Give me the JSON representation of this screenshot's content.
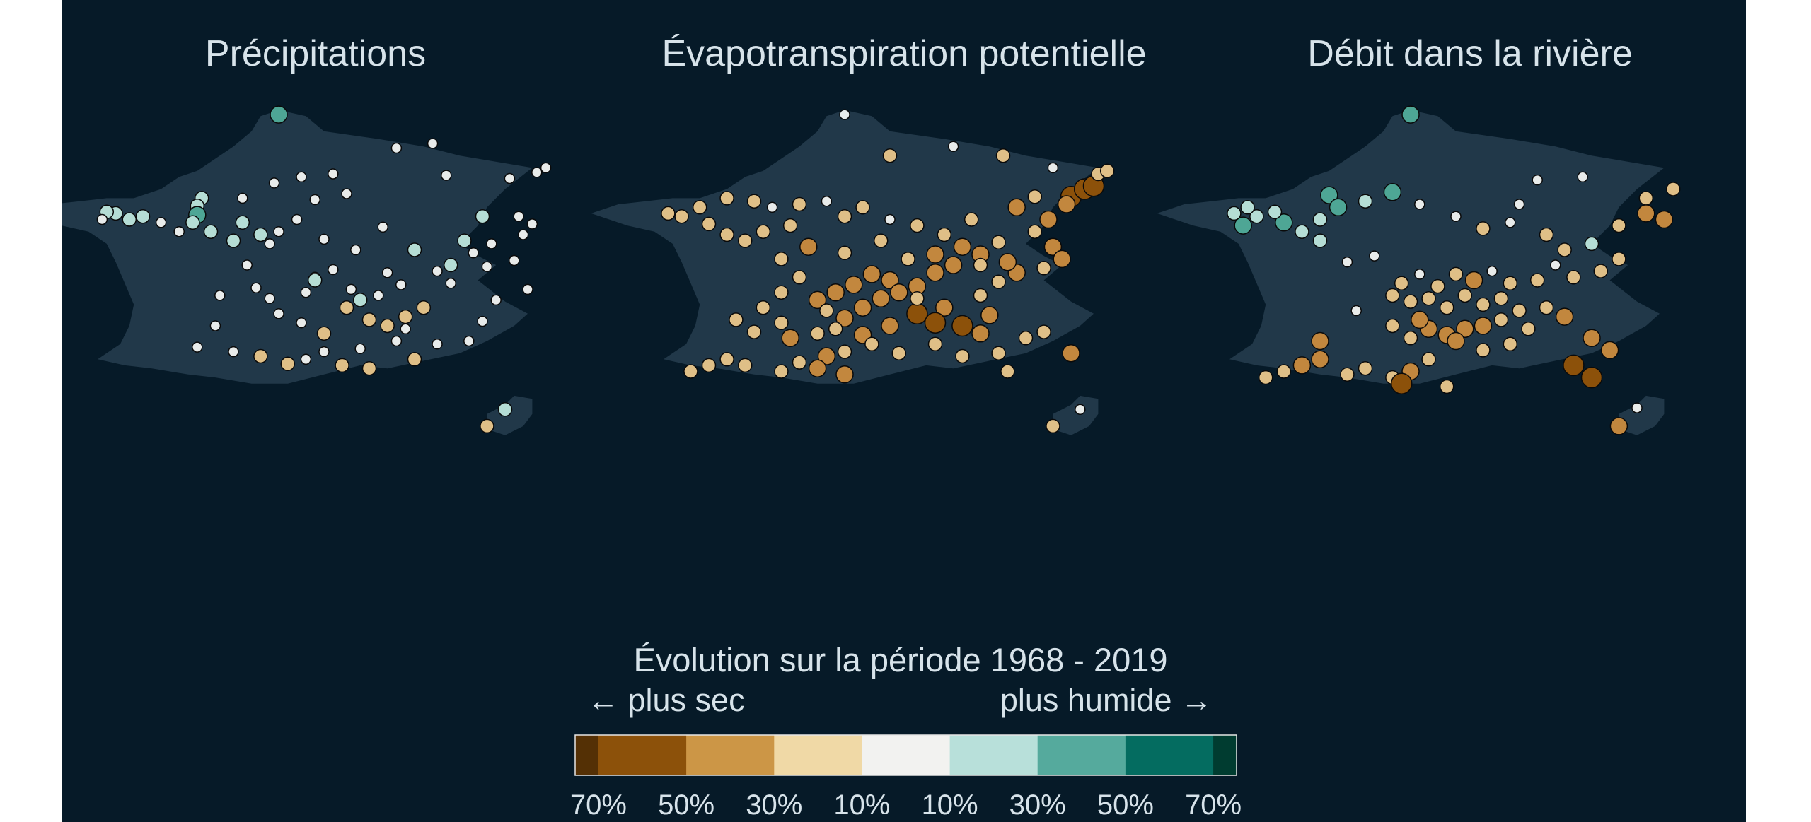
{
  "maps": [
    {
      "title": "Précipitations",
      "stations": [
        [
          0.4,
          0.01,
          2
        ],
        [
          0.23,
          0.56,
          1
        ],
        [
          0.22,
          0.61,
          1
        ],
        [
          0.22,
          0.67,
          2
        ],
        [
          0.21,
          0.72,
          1
        ],
        [
          0.25,
          0.78,
          1
        ],
        [
          0.74,
          0.2,
          0
        ],
        [
          0.66,
          0.23,
          0
        ],
        [
          0.77,
          0.41,
          0
        ],
        [
          0.91,
          0.43,
          0
        ],
        [
          0.97,
          0.39,
          0
        ],
        [
          0.99,
          0.36,
          0
        ],
        [
          0.32,
          0.56,
          0
        ],
        [
          0.39,
          0.46,
          0
        ],
        [
          0.45,
          0.42,
          0
        ],
        [
          0.52,
          0.4,
          0
        ],
        [
          0.55,
          0.53,
          0
        ],
        [
          0.48,
          0.57,
          0
        ],
        [
          0.44,
          0.7,
          0
        ],
        [
          0.4,
          0.78,
          0
        ],
        [
          0.38,
          0.86,
          0
        ],
        [
          0.5,
          0.83,
          0
        ],
        [
          0.57,
          0.9,
          0
        ],
        [
          0.63,
          0.75,
          0
        ],
        [
          0.7,
          0.9,
          1
        ],
        [
          0.78,
          1.0,
          1
        ],
        [
          0.86,
          1.01,
          0
        ],
        [
          0.92,
          0.97,
          0
        ],
        [
          0.95,
          1.16,
          0
        ],
        [
          0.88,
          1.23,
          0
        ],
        [
          0.78,
          1.12,
          0
        ],
        [
          0.75,
          1.04,
          0
        ],
        [
          0.67,
          1.13,
          0
        ],
        [
          0.64,
          1.05,
          0
        ],
        [
          0.62,
          1.2,
          0
        ],
        [
          0.56,
          1.16,
          0
        ],
        [
          0.55,
          1.28,
          -1
        ],
        [
          0.6,
          1.36,
          -1
        ],
        [
          0.68,
          1.34,
          -1
        ],
        [
          0.72,
          1.28,
          -1
        ],
        [
          0.64,
          1.4,
          -1
        ],
        [
          0.5,
          1.45,
          -1
        ],
        [
          0.45,
          1.38,
          0
        ],
        [
          0.4,
          1.32,
          0
        ],
        [
          0.38,
          1.22,
          0
        ],
        [
          0.46,
          1.18,
          0
        ],
        [
          0.48,
          1.08,
          0
        ],
        [
          0.52,
          1.03,
          0
        ],
        [
          0.33,
          1.0,
          0
        ],
        [
          0.27,
          1.2,
          0
        ],
        [
          0.26,
          1.4,
          0
        ],
        [
          0.22,
          1.54,
          0
        ],
        [
          0.3,
          1.57,
          0
        ],
        [
          0.36,
          1.6,
          -1
        ],
        [
          0.42,
          1.65,
          -1
        ],
        [
          0.46,
          1.62,
          0
        ],
        [
          0.5,
          1.57,
          0
        ],
        [
          0.58,
          1.55,
          0
        ],
        [
          0.66,
          1.5,
          0
        ],
        [
          0.75,
          1.52,
          0
        ],
        [
          0.82,
          1.5,
          0
        ],
        [
          0.85,
          1.37,
          0
        ],
        [
          0.7,
          1.62,
          -1
        ],
        [
          0.54,
          1.66,
          -1
        ],
        [
          0.6,
          1.68,
          -1
        ],
        [
          0.68,
          1.42,
          0
        ],
        [
          0.32,
          0.72,
          1
        ],
        [
          0.36,
          0.8,
          1
        ],
        [
          0.3,
          0.84,
          1
        ],
        [
          0.18,
          0.78,
          0
        ],
        [
          0.14,
          0.72,
          0
        ],
        [
          0.1,
          0.68,
          1
        ],
        [
          0.07,
          0.7,
          1
        ],
        [
          0.04,
          0.66,
          1
        ],
        [
          0.02,
          0.65,
          1
        ],
        [
          0.01,
          0.7,
          0
        ],
        [
          0.81,
          0.84,
          1
        ],
        [
          0.83,
          0.92,
          0
        ],
        [
          0.87,
          0.86,
          0
        ],
        [
          0.94,
          0.8,
          0
        ],
        [
          0.96,
          0.73,
          0
        ],
        [
          0.93,
          0.68,
          0
        ],
        [
          0.85,
          0.68,
          1
        ],
        [
          0.58,
          1.23,
          1
        ],
        [
          0.48,
          1.1,
          1
        ],
        [
          0.35,
          1.15,
          0
        ],
        [
          0.9,
          1.95,
          1
        ],
        [
          0.86,
          2.06,
          -1
        ]
      ]
    },
    {
      "title": "Évapotranspiration potentielle",
      "stations": [
        [
          0.4,
          0.01,
          0
        ],
        [
          0.9,
          0.55,
          -3
        ],
        [
          0.93,
          0.5,
          -3
        ],
        [
          0.95,
          0.48,
          -3
        ],
        [
          0.89,
          0.6,
          -2
        ],
        [
          0.85,
          0.7,
          -2
        ],
        [
          0.82,
          0.78,
          -1
        ],
        [
          0.86,
          0.88,
          -2
        ],
        [
          0.88,
          0.96,
          -2
        ],
        [
          0.84,
          1.02,
          -1
        ],
        [
          0.78,
          1.05,
          -2
        ],
        [
          0.74,
          1.11,
          -1
        ],
        [
          0.7,
          1.2,
          -1
        ],
        [
          0.62,
          1.28,
          -2
        ],
        [
          0.56,
          1.32,
          -3
        ],
        [
          0.6,
          1.38,
          -3
        ],
        [
          0.66,
          1.4,
          -3
        ],
        [
          0.7,
          1.45,
          -2
        ],
        [
          0.72,
          1.33,
          -2
        ],
        [
          0.5,
          1.1,
          -2
        ],
        [
          0.46,
          1.06,
          -2
        ],
        [
          0.42,
          1.13,
          -2
        ],
        [
          0.38,
          1.18,
          -2
        ],
        [
          0.34,
          1.23,
          -2
        ],
        [
          0.36,
          1.3,
          -1
        ],
        [
          0.4,
          1.35,
          -2
        ],
        [
          0.44,
          1.28,
          -2
        ],
        [
          0.48,
          1.22,
          -2
        ],
        [
          0.52,
          1.18,
          -2
        ],
        [
          0.56,
          1.14,
          -2
        ],
        [
          0.6,
          1.05,
          -2
        ],
        [
          0.64,
          1.0,
          -2
        ],
        [
          0.7,
          0.93,
          -2
        ],
        [
          0.74,
          0.85,
          -1
        ],
        [
          0.66,
          0.88,
          -2
        ],
        [
          0.62,
          0.8,
          -1
        ],
        [
          0.56,
          0.74,
          -1
        ],
        [
          0.5,
          0.7,
          0
        ],
        [
          0.44,
          0.62,
          -1
        ],
        [
          0.4,
          0.68,
          -1
        ],
        [
          0.36,
          0.58,
          0
        ],
        [
          0.3,
          0.6,
          -1
        ],
        [
          0.24,
          0.62,
          0
        ],
        [
          0.2,
          0.58,
          -1
        ],
        [
          0.14,
          0.56,
          -1
        ],
        [
          0.08,
          0.62,
          -1
        ],
        [
          0.04,
          0.68,
          -1
        ],
        [
          0.01,
          0.66,
          -1
        ],
        [
          0.1,
          0.73,
          -1
        ],
        [
          0.14,
          0.8,
          -1
        ],
        [
          0.18,
          0.84,
          -1
        ],
        [
          0.22,
          0.78,
          -1
        ],
        [
          0.28,
          0.74,
          -1
        ],
        [
          0.32,
          0.88,
          -2
        ],
        [
          0.26,
          0.96,
          -1
        ],
        [
          0.4,
          0.92,
          -1
        ],
        [
          0.48,
          0.84,
          -1
        ],
        [
          0.54,
          0.96,
          -1
        ],
        [
          0.6,
          0.93,
          -2
        ],
        [
          0.7,
          1.0,
          -1
        ],
        [
          0.76,
          0.98,
          -2
        ],
        [
          0.3,
          1.08,
          -1
        ],
        [
          0.26,
          1.18,
          -1
        ],
        [
          0.22,
          1.28,
          -1
        ],
        [
          0.26,
          1.38,
          -1
        ],
        [
          0.2,
          1.44,
          -1
        ],
        [
          0.28,
          1.48,
          -2
        ],
        [
          0.34,
          1.45,
          -1
        ],
        [
          0.38,
          1.42,
          -1
        ],
        [
          0.44,
          1.46,
          -2
        ],
        [
          0.5,
          1.4,
          -2
        ],
        [
          0.46,
          1.52,
          -1
        ],
        [
          0.4,
          1.57,
          -1
        ],
        [
          0.36,
          1.6,
          -2
        ],
        [
          0.3,
          1.64,
          -1
        ],
        [
          0.26,
          1.7,
          -1
        ],
        [
          0.18,
          1.66,
          -1
        ],
        [
          0.14,
          1.62,
          -1
        ],
        [
          0.1,
          1.66,
          -1
        ],
        [
          0.06,
          1.7,
          -1
        ],
        [
          0.34,
          1.68,
          -2
        ],
        [
          0.4,
          1.72,
          -2
        ],
        [
          0.52,
          1.58,
          -1
        ],
        [
          0.6,
          1.52,
          -1
        ],
        [
          0.66,
          1.6,
          -1
        ],
        [
          0.74,
          1.58,
          -1
        ],
        [
          0.8,
          1.48,
          -1
        ],
        [
          0.84,
          1.44,
          -1
        ],
        [
          0.9,
          1.58,
          -2
        ],
        [
          0.76,
          1.7,
          -1
        ],
        [
          0.16,
          1.36,
          -1
        ],
        [
          0.56,
          1.22,
          -1
        ],
        [
          0.68,
          0.7,
          -1
        ],
        [
          0.78,
          0.62,
          -2
        ],
        [
          0.82,
          0.55,
          -1
        ],
        [
          0.86,
          0.36,
          0
        ],
        [
          0.96,
          0.4,
          -1
        ],
        [
          0.98,
          0.38,
          -1
        ],
        [
          0.75,
          0.28,
          -1
        ],
        [
          0.64,
          0.22,
          0
        ],
        [
          0.5,
          0.28,
          -1
        ],
        [
          0.92,
          1.95,
          0
        ],
        [
          0.86,
          2.06,
          -1
        ]
      ]
    },
    {
      "title": "Débit dans la rivière",
      "stations": [
        [
          0.4,
          0.01,
          2
        ],
        [
          0.22,
          0.54,
          2
        ],
        [
          0.24,
          0.62,
          2
        ],
        [
          0.2,
          0.7,
          1
        ],
        [
          0.12,
          0.72,
          2
        ],
        [
          0.1,
          0.65,
          1
        ],
        [
          0.06,
          0.68,
          1
        ],
        [
          0.03,
          0.74,
          2
        ],
        [
          0.01,
          0.66,
          1
        ],
        [
          0.04,
          0.62,
          1
        ],
        [
          0.16,
          0.78,
          1
        ],
        [
          0.2,
          0.84,
          1
        ],
        [
          0.3,
          0.58,
          1
        ],
        [
          0.36,
          0.52,
          2
        ],
        [
          0.42,
          0.6,
          0
        ],
        [
          0.5,
          0.68,
          0
        ],
        [
          0.56,
          0.76,
          -1
        ],
        [
          0.62,
          0.72,
          0
        ],
        [
          0.7,
          0.8,
          -1
        ],
        [
          0.74,
          0.9,
          -1
        ],
        [
          0.8,
          0.86,
          1
        ],
        [
          0.86,
          0.74,
          -1
        ],
        [
          0.92,
          0.66,
          -2
        ],
        [
          0.96,
          0.7,
          -2
        ],
        [
          0.98,
          0.5,
          -1
        ],
        [
          0.92,
          0.56,
          -1
        ],
        [
          0.86,
          0.96,
          -1
        ],
        [
          0.82,
          1.04,
          -1
        ],
        [
          0.76,
          1.08,
          -1
        ],
        [
          0.72,
          1.0,
          0
        ],
        [
          0.68,
          1.1,
          -1
        ],
        [
          0.62,
          1.12,
          -1
        ],
        [
          0.58,
          1.04,
          0
        ],
        [
          0.54,
          1.1,
          -2
        ],
        [
          0.5,
          1.06,
          -1
        ],
        [
          0.46,
          1.14,
          -1
        ],
        [
          0.42,
          1.06,
          0
        ],
        [
          0.38,
          1.12,
          -1
        ],
        [
          0.36,
          1.2,
          -1
        ],
        [
          0.4,
          1.24,
          -1
        ],
        [
          0.44,
          1.22,
          -1
        ],
        [
          0.48,
          1.28,
          -1
        ],
        [
          0.52,
          1.2,
          -1
        ],
        [
          0.56,
          1.26,
          -1
        ],
        [
          0.6,
          1.22,
          -1
        ],
        [
          0.64,
          1.3,
          -1
        ],
        [
          0.7,
          1.28,
          -1
        ],
        [
          0.74,
          1.34,
          -2
        ],
        [
          0.6,
          1.36,
          -1
        ],
        [
          0.56,
          1.4,
          -2
        ],
        [
          0.52,
          1.42,
          -2
        ],
        [
          0.48,
          1.46,
          -2
        ],
        [
          0.44,
          1.42,
          -2
        ],
        [
          0.4,
          1.48,
          -1
        ],
        [
          0.36,
          1.4,
          -1
        ],
        [
          0.42,
          1.36,
          -2
        ],
        [
          0.5,
          1.5,
          -2
        ],
        [
          0.56,
          1.56,
          -1
        ],
        [
          0.62,
          1.52,
          -1
        ],
        [
          0.66,
          1.42,
          -1
        ],
        [
          0.8,
          1.48,
          -2
        ],
        [
          0.84,
          1.56,
          -2
        ],
        [
          0.76,
          1.66,
          -3
        ],
        [
          0.8,
          1.74,
          -3
        ],
        [
          0.44,
          1.62,
          -1
        ],
        [
          0.4,
          1.7,
          -2
        ],
        [
          0.36,
          1.74,
          -1
        ],
        [
          0.3,
          1.68,
          -1
        ],
        [
          0.26,
          1.72,
          -1
        ],
        [
          0.2,
          1.62,
          -2
        ],
        [
          0.16,
          1.66,
          -2
        ],
        [
          0.12,
          1.7,
          -1
        ],
        [
          0.08,
          1.74,
          -1
        ],
        [
          0.38,
          1.78,
          -3
        ],
        [
          0.48,
          1.8,
          -1
        ],
        [
          0.2,
          1.5,
          -2
        ],
        [
          0.28,
          1.3,
          0
        ],
        [
          0.32,
          0.94,
          0
        ],
        [
          0.26,
          0.98,
          0
        ],
        [
          0.64,
          0.6,
          0
        ],
        [
          0.68,
          0.44,
          0
        ],
        [
          0.78,
          0.42,
          0
        ],
        [
          0.9,
          1.94,
          0
        ],
        [
          0.86,
          2.06,
          -2
        ]
      ]
    }
  ],
  "legend": {
    "title": "Évolution sur la période 1968 - 2019",
    "left_label": "← plus sec",
    "right_label": "plus humide →",
    "ticks": [
      "70%",
      "50%",
      "30%",
      "10%",
      "10%",
      "30%",
      "50%",
      "70%"
    ],
    "colors": [
      "#543005",
      "#8c510a",
      "#cc9646",
      "#f0d9a6",
      "#f2f2f0",
      "#b8e0da",
      "#55aa9d",
      "#046c60",
      "#003c30"
    ]
  },
  "colors": {
    "background": "#061a28",
    "land": "#213849",
    "text": "#d7e3ea"
  }
}
